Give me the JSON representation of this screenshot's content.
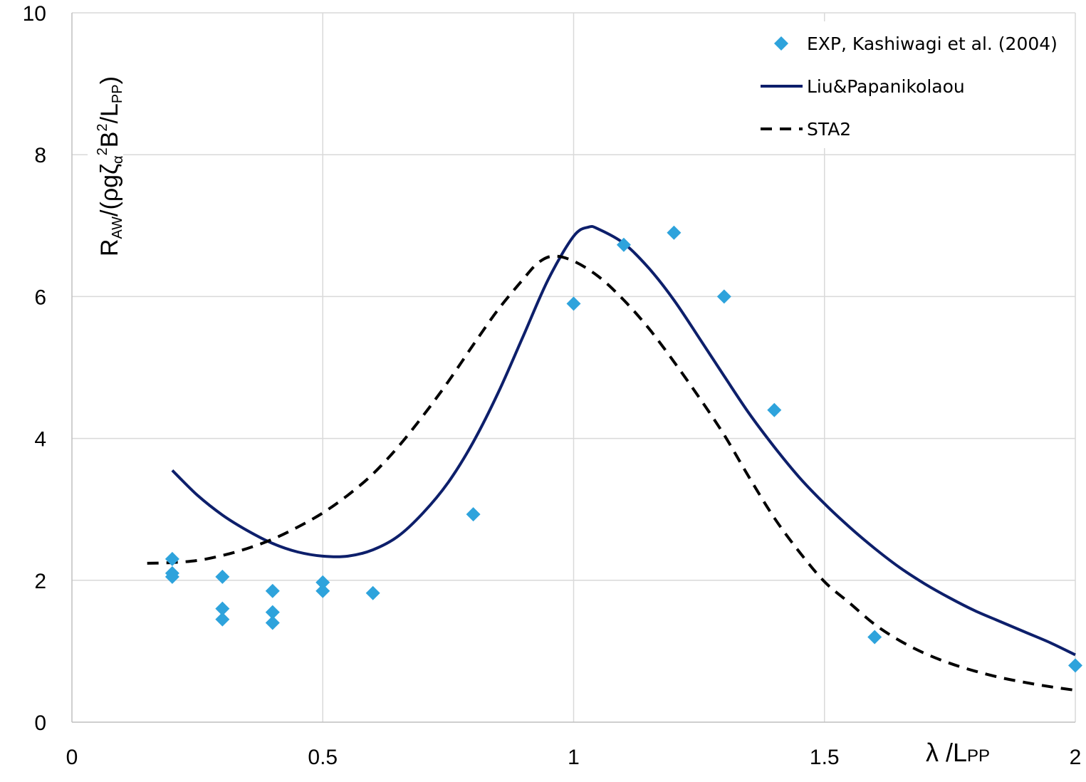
{
  "chart_data": {
    "type": "scatter",
    "title": "",
    "xlabel": "λ /LPP",
    "ylabel": "RAW/(ρgζα2B2/LPP)",
    "xlabel_parts": {
      "main": "λ /L",
      "sub": "PP"
    },
    "ylabel_parts": {
      "r": "R",
      "sub_aw": "AW",
      "mid": "/(ρgζ",
      "sub_alpha": "α",
      "sup_1": "2",
      "b": "B",
      "sup_2": "2",
      "slash_l": "/L",
      "sub_pp": "PP",
      "close": ")"
    },
    "xlim": [
      0,
      2
    ],
    "ylim": [
      0,
      10
    ],
    "x_ticks": [
      0,
      0.5,
      1,
      1.5,
      2
    ],
    "x_tick_labels": [
      "0",
      "0.5",
      "1",
      "1.5",
      "2"
    ],
    "y_ticks": [
      0,
      2,
      4,
      6,
      8,
      10
    ],
    "y_tick_labels": [
      "0",
      "2",
      "4",
      "6",
      "8",
      "10"
    ],
    "grid": true,
    "legend_position": "top-right",
    "series": [
      {
        "name": "EXP, Kashiwagi et al. (2004)",
        "kind": "marker",
        "marker": "diamond",
        "color": "#2ea3dc",
        "points": [
          [
            0.2,
            2.3
          ],
          [
            0.2,
            2.1
          ],
          [
            0.2,
            2.05
          ],
          [
            0.3,
            2.05
          ],
          [
            0.3,
            1.6
          ],
          [
            0.3,
            1.45
          ],
          [
            0.4,
            1.85
          ],
          [
            0.4,
            1.55
          ],
          [
            0.4,
            1.4
          ],
          [
            0.5,
            1.97
          ],
          [
            0.5,
            1.85
          ],
          [
            0.6,
            1.82
          ],
          [
            0.8,
            2.93
          ],
          [
            1.0,
            5.9
          ],
          [
            1.1,
            6.73
          ],
          [
            1.2,
            6.9
          ],
          [
            1.3,
            6.0
          ],
          [
            1.4,
            4.4
          ],
          [
            1.6,
            1.2
          ],
          [
            2.0,
            0.8
          ]
        ]
      },
      {
        "name": "Liu&Papanikolaou",
        "kind": "line",
        "dash": "solid",
        "color": "#0d1f6b",
        "points": [
          [
            0.2,
            3.55
          ],
          [
            0.25,
            3.2
          ],
          [
            0.3,
            2.92
          ],
          [
            0.35,
            2.7
          ],
          [
            0.4,
            2.52
          ],
          [
            0.45,
            2.4
          ],
          [
            0.5,
            2.34
          ],
          [
            0.55,
            2.34
          ],
          [
            0.6,
            2.43
          ],
          [
            0.65,
            2.62
          ],
          [
            0.7,
            2.95
          ],
          [
            0.75,
            3.38
          ],
          [
            0.8,
            3.95
          ],
          [
            0.85,
            4.65
          ],
          [
            0.9,
            5.45
          ],
          [
            0.95,
            6.25
          ],
          [
            1.0,
            6.85
          ],
          [
            1.03,
            6.98
          ],
          [
            1.05,
            6.95
          ],
          [
            1.1,
            6.75
          ],
          [
            1.15,
            6.4
          ],
          [
            1.2,
            5.95
          ],
          [
            1.25,
            5.42
          ],
          [
            1.3,
            4.88
          ],
          [
            1.35,
            4.35
          ],
          [
            1.4,
            3.88
          ],
          [
            1.45,
            3.45
          ],
          [
            1.5,
            3.08
          ],
          [
            1.55,
            2.75
          ],
          [
            1.6,
            2.45
          ],
          [
            1.65,
            2.18
          ],
          [
            1.7,
            1.95
          ],
          [
            1.75,
            1.75
          ],
          [
            1.8,
            1.57
          ],
          [
            1.85,
            1.42
          ],
          [
            1.9,
            1.27
          ],
          [
            1.95,
            1.12
          ],
          [
            2.0,
            0.95
          ]
        ]
      },
      {
        "name": "STA2",
        "kind": "line",
        "dash": "dashed",
        "color": "#000000",
        "points": [
          [
            0.15,
            2.24
          ],
          [
            0.2,
            2.25
          ],
          [
            0.25,
            2.28
          ],
          [
            0.3,
            2.35
          ],
          [
            0.35,
            2.45
          ],
          [
            0.4,
            2.58
          ],
          [
            0.45,
            2.75
          ],
          [
            0.5,
            2.95
          ],
          [
            0.55,
            3.2
          ],
          [
            0.6,
            3.5
          ],
          [
            0.65,
            3.88
          ],
          [
            0.7,
            4.32
          ],
          [
            0.75,
            4.8
          ],
          [
            0.8,
            5.32
          ],
          [
            0.85,
            5.82
          ],
          [
            0.9,
            6.25
          ],
          [
            0.93,
            6.48
          ],
          [
            0.96,
            6.57
          ],
          [
            1.0,
            6.5
          ],
          [
            1.05,
            6.28
          ],
          [
            1.1,
            5.95
          ],
          [
            1.15,
            5.55
          ],
          [
            1.2,
            5.08
          ],
          [
            1.25,
            4.58
          ],
          [
            1.3,
            4.05
          ],
          [
            1.35,
            3.45
          ],
          [
            1.4,
            2.88
          ],
          [
            1.45,
            2.4
          ],
          [
            1.5,
            1.98
          ],
          [
            1.55,
            1.68
          ],
          [
            1.6,
            1.38
          ],
          [
            1.65,
            1.15
          ],
          [
            1.7,
            0.97
          ],
          [
            1.75,
            0.83
          ],
          [
            1.8,
            0.72
          ],
          [
            1.85,
            0.63
          ],
          [
            1.9,
            0.56
          ],
          [
            1.95,
            0.5
          ],
          [
            2.0,
            0.45
          ]
        ]
      }
    ]
  }
}
